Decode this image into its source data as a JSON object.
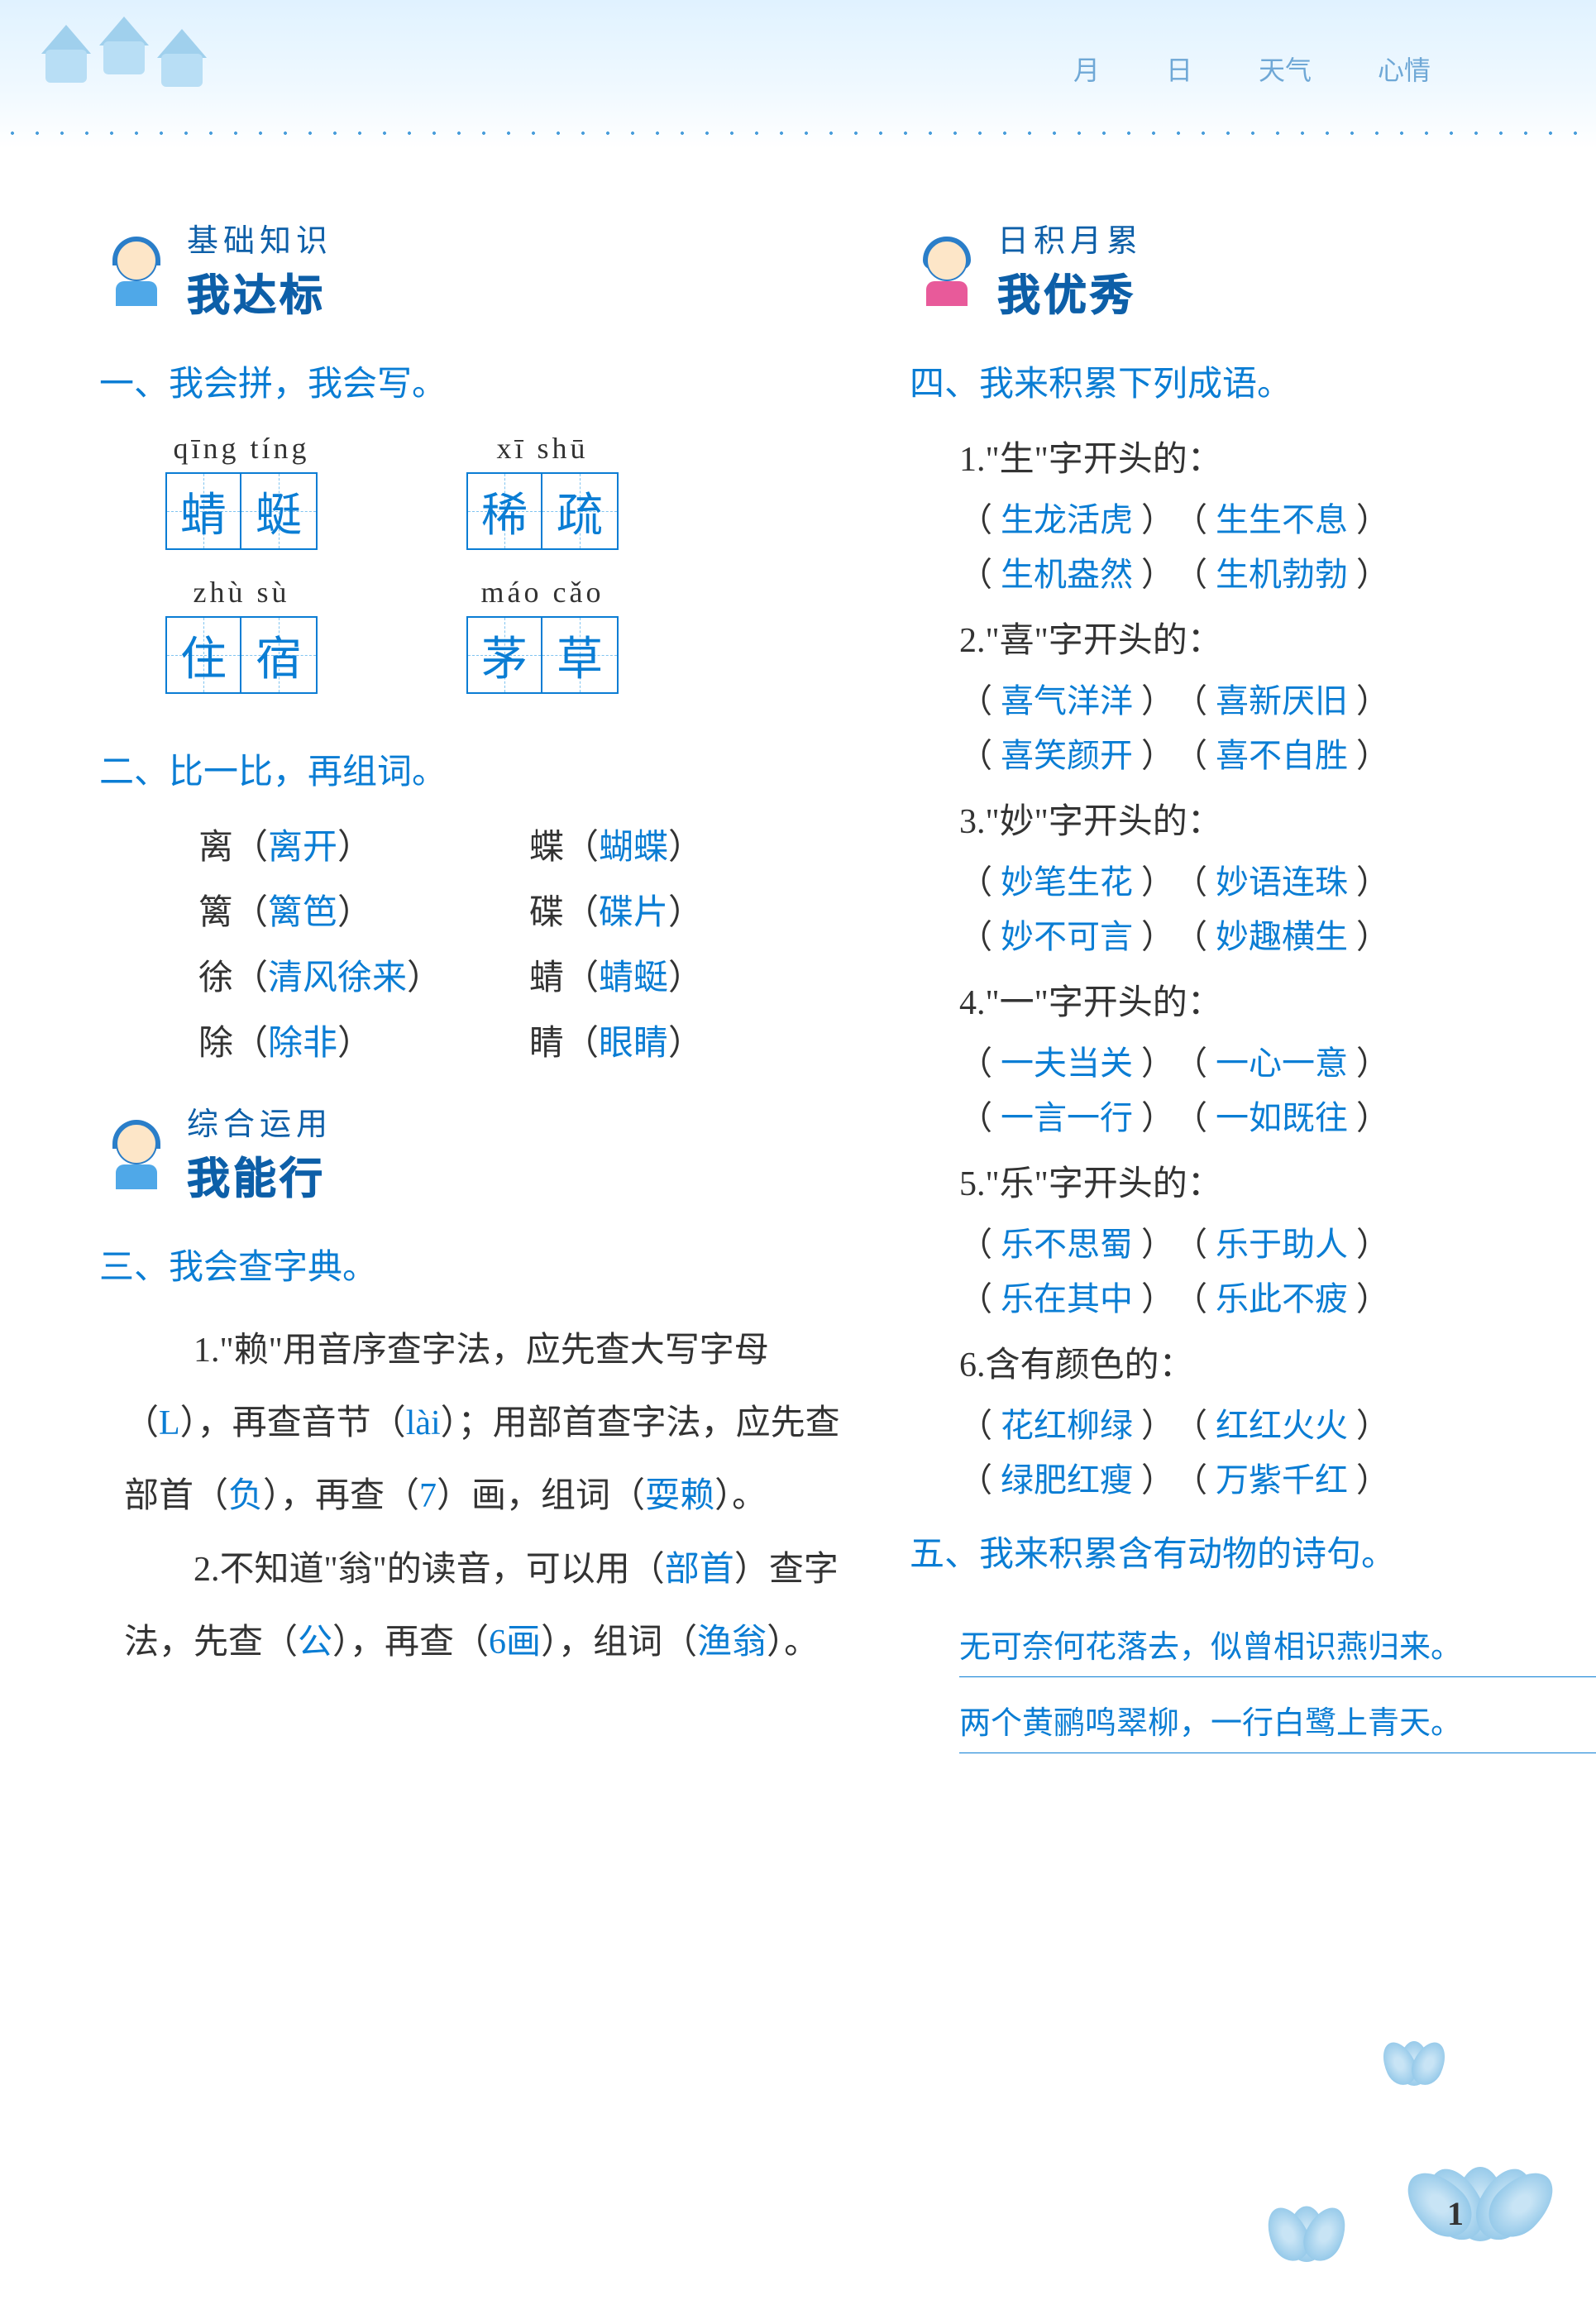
{
  "header": {
    "labels": [
      "月",
      "日",
      "天气",
      "心情"
    ]
  },
  "sections": {
    "basic": {
      "subtitle": "基础知识",
      "title": "我达标"
    },
    "apply": {
      "subtitle": "综合运用",
      "title": "我能行"
    },
    "accumulate": {
      "subtitle": "日积月累",
      "title": "我优秀"
    }
  },
  "q1": {
    "title": "一、我会拼，我会写。",
    "rows": [
      [
        {
          "pinyin": "qīng tíng",
          "chars": [
            "蜻",
            "蜓"
          ]
        },
        {
          "pinyin": "xī  shū",
          "chars": [
            "稀",
            "疏"
          ]
        }
      ],
      [
        {
          "pinyin": "zhù  sù",
          "chars": [
            "住",
            "宿"
          ]
        },
        {
          "pinyin": "máo cǎo",
          "chars": [
            "茅",
            "草"
          ]
        }
      ]
    ]
  },
  "q2": {
    "title": "二、比一比，再组词。",
    "rows": [
      [
        {
          "char": "离",
          "ans": "离开"
        },
        {
          "char": "蝶",
          "ans": "蝴蝶"
        }
      ],
      [
        {
          "char": "篱",
          "ans": "篱笆"
        },
        {
          "char": "碟",
          "ans": "碟片"
        }
      ],
      [
        {
          "char": "徐",
          "ans": "清风徐来"
        },
        {
          "char": "蜻",
          "ans": "蜻蜓"
        }
      ],
      [
        {
          "char": "除",
          "ans": "除非"
        },
        {
          "char": "睛",
          "ans": "眼睛"
        }
      ]
    ]
  },
  "q3": {
    "title": "三、我会查字典。",
    "p1_a": "1.\"赖\"用音序查字法，应先查大写字母（",
    "p1_ans1": "L",
    "p1_b": "），再查音节（",
    "p1_ans2": "lài",
    "p1_c": "）；用部首查字法，应先查部首（",
    "p1_ans3": "负",
    "p1_d": "），再查（",
    "p1_ans4": "7",
    "p1_e": "）画，组词（",
    "p1_ans5": "耍赖",
    "p1_f": "）。",
    "p2_a": "2.不知道\"翁\"的读音，可以用（",
    "p2_ans1": "部首",
    "p2_b": "）查字法，先查（",
    "p2_ans2": "公",
    "p2_c": "），再查（",
    "p2_ans3": "6画",
    "p2_d": "），组词（",
    "p2_ans4": "渔翁",
    "p2_e": "）。"
  },
  "q4": {
    "title": "四、我来积累下列成语。",
    "groups": [
      {
        "label": "1.\"生\"字开头的：",
        "idioms": [
          [
            "生龙活虎",
            "生生不息"
          ],
          [
            "生机盎然",
            "生机勃勃"
          ]
        ]
      },
      {
        "label": "2.\"喜\"字开头的：",
        "idioms": [
          [
            "喜气洋洋",
            "喜新厌旧"
          ],
          [
            "喜笑颜开",
            "喜不自胜"
          ]
        ]
      },
      {
        "label": "3.\"妙\"字开头的：",
        "idioms": [
          [
            "妙笔生花",
            "妙语连珠"
          ],
          [
            "妙不可言",
            "妙趣横生"
          ]
        ]
      },
      {
        "label": "4.\"一\"字开头的：",
        "idioms": [
          [
            "一夫当关",
            "一心一意"
          ],
          [
            "一言一行",
            "一如既往"
          ]
        ]
      },
      {
        "label": "5.\"乐\"字开头的：",
        "idioms": [
          [
            "乐不思蜀",
            "乐于助人"
          ],
          [
            "乐在其中",
            "乐此不疲"
          ]
        ]
      },
      {
        "label": "6.含有颜色的：",
        "idioms": [
          [
            "花红柳绿",
            "红红火火"
          ],
          [
            "绿肥红瘦",
            "万紫千红"
          ]
        ]
      }
    ]
  },
  "q5": {
    "title": "五、我来积累含有动物的诗句。",
    "lines": [
      "无可奈何花落去，似曾相识燕归来。",
      "两个黄鹂鸣翠柳，一行白鹭上青天。"
    ]
  },
  "page_number": "1",
  "colors": {
    "primary_blue": "#0a7dd4",
    "dark_blue": "#0d5fa8",
    "text_black": "#333333",
    "light_blue_bg": "#e0f2ff"
  }
}
